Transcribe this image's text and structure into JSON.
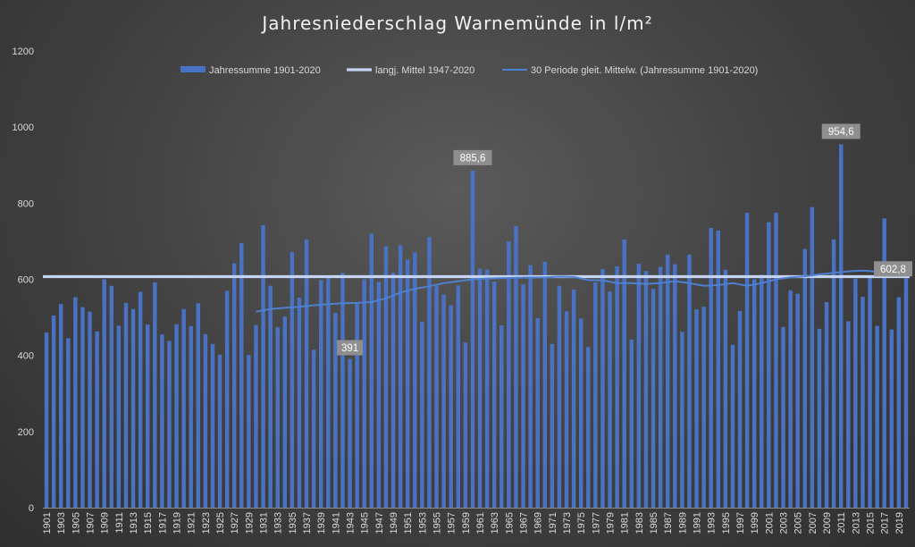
{
  "chart_data": {
    "type": "bar",
    "title": "Jahresniederschlag Warnemünde in l/m²",
    "ylim": [
      0,
      1200
    ],
    "yticks": [
      0,
      200,
      400,
      600,
      800,
      1000,
      1200
    ],
    "x_start": 1901,
    "x_end": 2020,
    "x_tick_step": 2,
    "legend": {
      "bars": "Jahressumme 1901-2020",
      "mean": "langj. Mittel 1947-2020",
      "moving": "30 Periode gleit. Mittelw. (Jahressumme 1901-2020)"
    },
    "series": [
      {
        "name": "Jahressumme 1901-2020",
        "type": "bar",
        "color": "#4a72c4",
        "values": [
          460,
          505,
          535,
          445,
          553,
          527,
          515,
          463,
          600,
          583,
          478,
          538,
          522,
          567,
          481,
          592,
          455,
          438,
          482,
          522,
          477,
          537,
          456,
          430,
          402,
          570,
          642,
          695,
          401,
          480,
          742,
          583,
          474,
          502,
          672,
          552,
          705,
          415,
          598,
          610,
          512,
          617,
          391,
          540,
          600,
          720,
          593,
          687,
          617,
          690,
          652,
          671,
          488,
          711,
          583,
          560,
          532,
          584,
          434,
          885.6,
          628,
          626,
          594,
          479,
          700,
          740,
          587,
          637,
          498,
          646,
          430,
          583,
          516,
          573,
          497,
          422,
          592,
          627,
          568,
          634,
          705,
          442,
          641,
          622,
          575,
          633,
          665,
          640,
          462,
          665,
          521,
          528,
          735,
          728,
          625,
          428,
          517,
          775,
          600,
          612,
          750,
          775,
          475,
          571,
          562,
          680,
          790,
          470,
          540,
          705,
          954.6,
          490,
          602,
          554,
          606,
          478,
          760,
          468,
          553,
          602.8
        ]
      },
      {
        "name": "langj. Mittel 1947-2020",
        "type": "line",
        "color": "#c5d4f2",
        "value": 607
      },
      {
        "name": "30 Periode gleit. Mittelw. (Jahressumme 1901-2020)",
        "type": "line",
        "color": "#4f7fd0",
        "x": [
          1930,
          1932,
          1934,
          1936,
          1938,
          1940,
          1942,
          1944,
          1946,
          1948,
          1950,
          1952,
          1954,
          1956,
          1958,
          1960,
          1962,
          1964,
          1966,
          1968,
          1970,
          1972,
          1974,
          1976,
          1978,
          1980,
          1982,
          1984,
          1986,
          1988,
          1990,
          1992,
          1994,
          1996,
          1998,
          2000,
          2002,
          2004,
          2006,
          2008,
          2010,
          2012,
          2014,
          2016,
          2018,
          2020
        ],
        "values": [
          515,
          522,
          525,
          528,
          532,
          535,
          537,
          538,
          540,
          550,
          565,
          575,
          582,
          590,
          595,
          600,
          602,
          603,
          604,
          605,
          605,
          607,
          606,
          598,
          597,
          590,
          590,
          588,
          590,
          595,
          590,
          583,
          585,
          590,
          583,
          590,
          600,
          605,
          608,
          613,
          617,
          621,
          623,
          620,
          618,
          612
        ]
      }
    ],
    "data_labels": [
      {
        "year": 1943,
        "text": "391"
      },
      {
        "year": 1960,
        "text": "885,6"
      },
      {
        "year": 2011,
        "text": "954,6"
      },
      {
        "year": 2020,
        "text": "602,8"
      }
    ],
    "colors": {
      "bar": "#4a72c4",
      "mean_line": "#c5d4f2",
      "moving_line": "#4f7fd0",
      "label_bg": "#8f8f8f"
    }
  }
}
